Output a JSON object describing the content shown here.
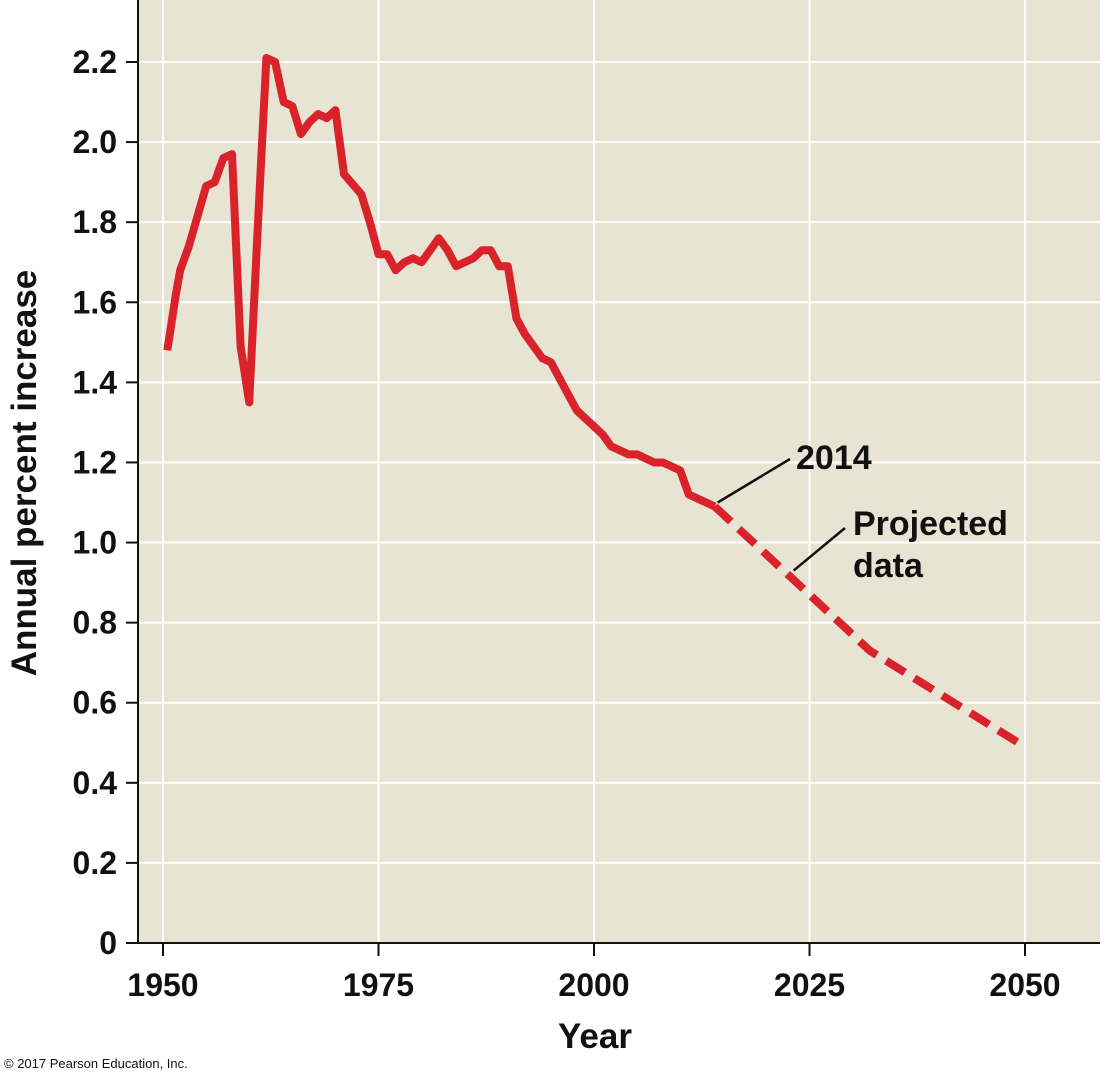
{
  "chart_data": {
    "type": "line",
    "title": "",
    "xlabel": "Year",
    "ylabel": "Annual percent increase",
    "xlim": [
      1950,
      2050
    ],
    "ylim": [
      0,
      2.3
    ],
    "x_ticks": [
      "1950",
      "1975",
      "2000",
      "2025",
      "2050"
    ],
    "x_tick_values": [
      1950,
      1975,
      2000,
      2025,
      2050
    ],
    "y_ticks": [
      "0",
      "0.2",
      "0.4",
      "0.6",
      "0.8",
      "1.0",
      "1.2",
      "1.4",
      "1.6",
      "1.8",
      "2.0",
      "2.2"
    ],
    "y_tick_values": [
      0,
      0.2,
      0.4,
      0.6,
      0.8,
      1.0,
      1.2,
      1.4,
      1.6,
      1.8,
      2.0,
      2.2
    ],
    "grid": true,
    "series": [
      {
        "style": "solid",
        "color": "#d9232a",
        "x": [
          1950.5,
          1951.5,
          1952,
          1953,
          1955,
          1956,
          1957,
          1958,
          1959,
          1960,
          1961,
          1962,
          1963,
          1964,
          1965,
          1966,
          1967,
          1968,
          1969,
          1970,
          1971,
          1973,
          1974,
          1975,
          1976,
          1977,
          1978,
          1979,
          1980,
          1981,
          1982,
          1983,
          1984,
          1985,
          1986,
          1987,
          1988,
          1989,
          1990,
          1991,
          1992,
          1993,
          1994,
          1995,
          1996,
          1997,
          1998,
          1999,
          2000,
          2001,
          2002,
          2003,
          2004,
          2005,
          2006,
          2007,
          2008,
          2009,
          2010,
          2011,
          2012,
          2013,
          2014
        ],
        "y": [
          1.48,
          1.62,
          1.68,
          1.74,
          1.89,
          1.9,
          1.96,
          1.97,
          1.49,
          1.35,
          1.79,
          2.21,
          2.2,
          2.1,
          2.09,
          2.02,
          2.05,
          2.07,
          2.06,
          2.08,
          1.92,
          1.87,
          1.8,
          1.72,
          1.72,
          1.68,
          1.7,
          1.71,
          1.7,
          1.73,
          1.76,
          1.73,
          1.69,
          1.7,
          1.71,
          1.73,
          1.73,
          1.69,
          1.69,
          1.56,
          1.52,
          1.49,
          1.46,
          1.45,
          1.41,
          1.37,
          1.33,
          1.31,
          1.29,
          1.27,
          1.24,
          1.23,
          1.22,
          1.22,
          1.21,
          1.2,
          1.2,
          1.19,
          1.18,
          1.12,
          1.11,
          1.1,
          1.09
        ]
      },
      {
        "style": "dashed",
        "color": "#d9232a",
        "x": [
          2014,
          2017,
          2020,
          2023,
          2026,
          2029,
          2032,
          2035,
          2038,
          2041,
          2044,
          2047,
          2050
        ],
        "y": [
          1.09,
          1.03,
          0.97,
          0.91,
          0.85,
          0.79,
          0.73,
          0.69,
          0.65,
          0.61,
          0.57,
          0.53,
          0.49
        ]
      }
    ],
    "annotations": [
      {
        "text": "2014",
        "x": 2014,
        "y": 1.09
      },
      {
        "text_lines": [
          "Projected",
          "data"
        ],
        "x": 2022,
        "y": 0.93
      }
    ]
  },
  "copyright": "© 2017 Pearson Education, Inc."
}
